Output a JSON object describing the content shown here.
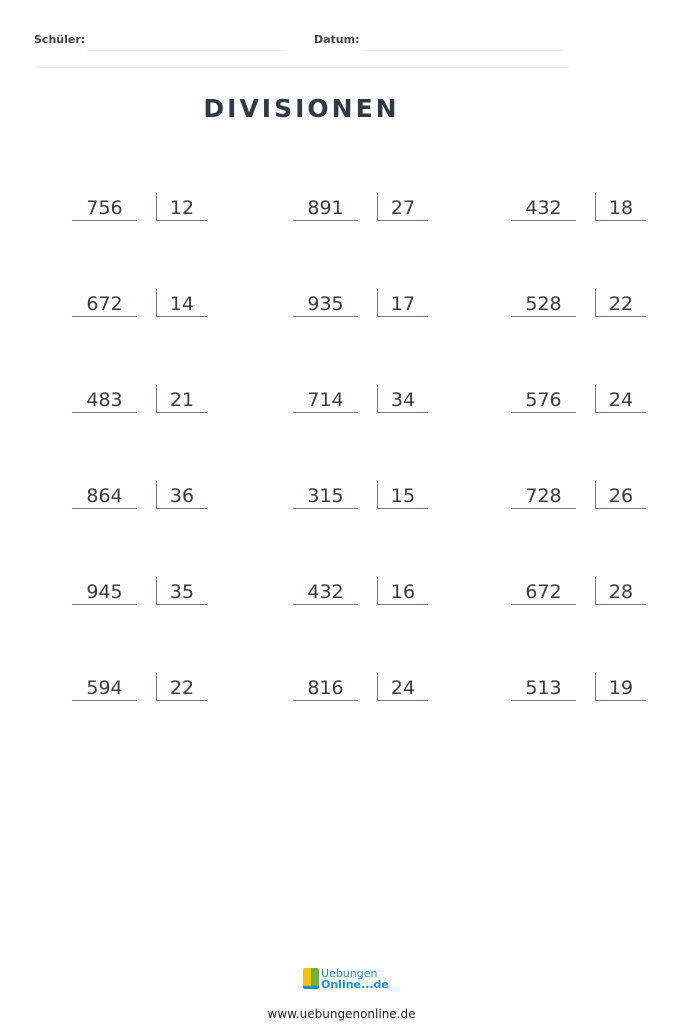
{
  "header": {
    "student_label": "Schüler:",
    "date_label": "Datum:"
  },
  "title": "DIVISIONEN",
  "problems": [
    [
      {
        "dividend": "756",
        "divisor": "12"
      },
      {
        "dividend": "891",
        "divisor": "27"
      },
      {
        "dividend": "432",
        "divisor": "18"
      }
    ],
    [
      {
        "dividend": "672",
        "divisor": "14"
      },
      {
        "dividend": "935",
        "divisor": "17"
      },
      {
        "dividend": "528",
        "divisor": "22"
      }
    ],
    [
      {
        "dividend": "483",
        "divisor": "21"
      },
      {
        "dividend": "714",
        "divisor": "34"
      },
      {
        "dividend": "576",
        "divisor": "24"
      }
    ],
    [
      {
        "dividend": "864",
        "divisor": "36"
      },
      {
        "dividend": "315",
        "divisor": "15"
      },
      {
        "dividend": "728",
        "divisor": "26"
      }
    ],
    [
      {
        "dividend": "945",
        "divisor": "35"
      },
      {
        "dividend": "432",
        "divisor": "16"
      },
      {
        "dividend": "672",
        "divisor": "28"
      }
    ],
    [
      {
        "dividend": "594",
        "divisor": "22"
      },
      {
        "dividend": "816",
        "divisor": "24"
      },
      {
        "dividend": "513",
        "divisor": "19"
      }
    ]
  ],
  "footer": {
    "logo_line1": "Uebungen",
    "logo_line2": "Online...de",
    "url": "www.uebungenonline.de"
  },
  "colors": {
    "text": "#2e3a48",
    "logo_blue": "#1a8fd0",
    "logo_green": "#6cb33f"
  }
}
